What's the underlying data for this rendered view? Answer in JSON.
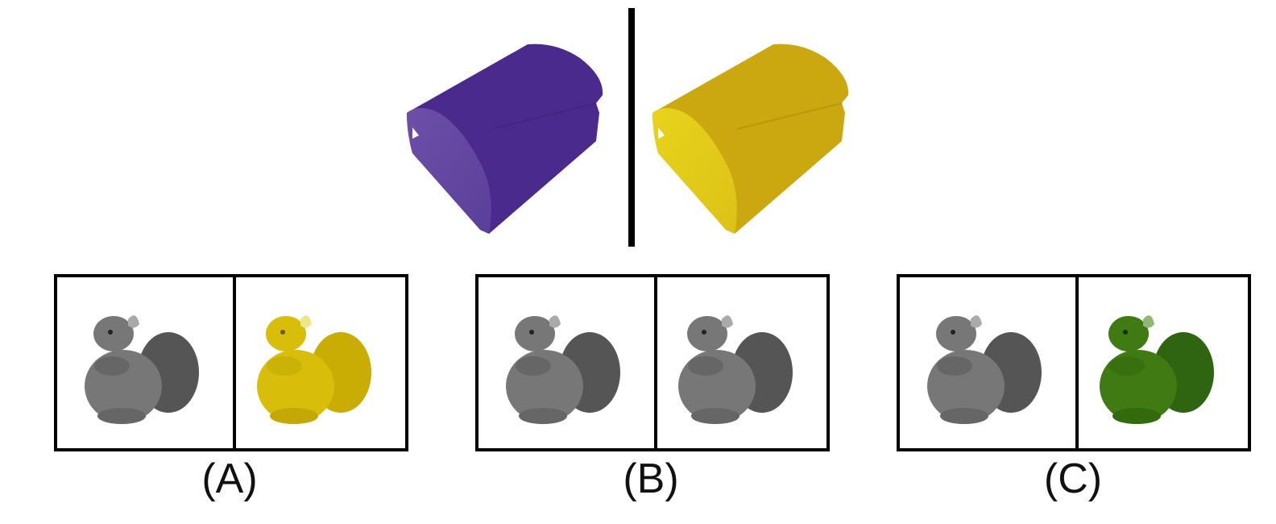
{
  "example": {
    "left_color": "#4a2a8c",
    "right_color": "#cba80f",
    "separator_color": "#000000"
  },
  "options": [
    {
      "label": "(A)",
      "left_color": "gray",
      "right_color": "#c9b000"
    },
    {
      "label": "(B)",
      "left_color": "gray",
      "right_color": "gray"
    },
    {
      "label": "(C)",
      "left_color": "gray",
      "right_color": "#3f7a12"
    }
  ],
  "icons": {
    "shape": "rounded-block-shape-icon",
    "figure": "squirrel-plush-icon"
  }
}
